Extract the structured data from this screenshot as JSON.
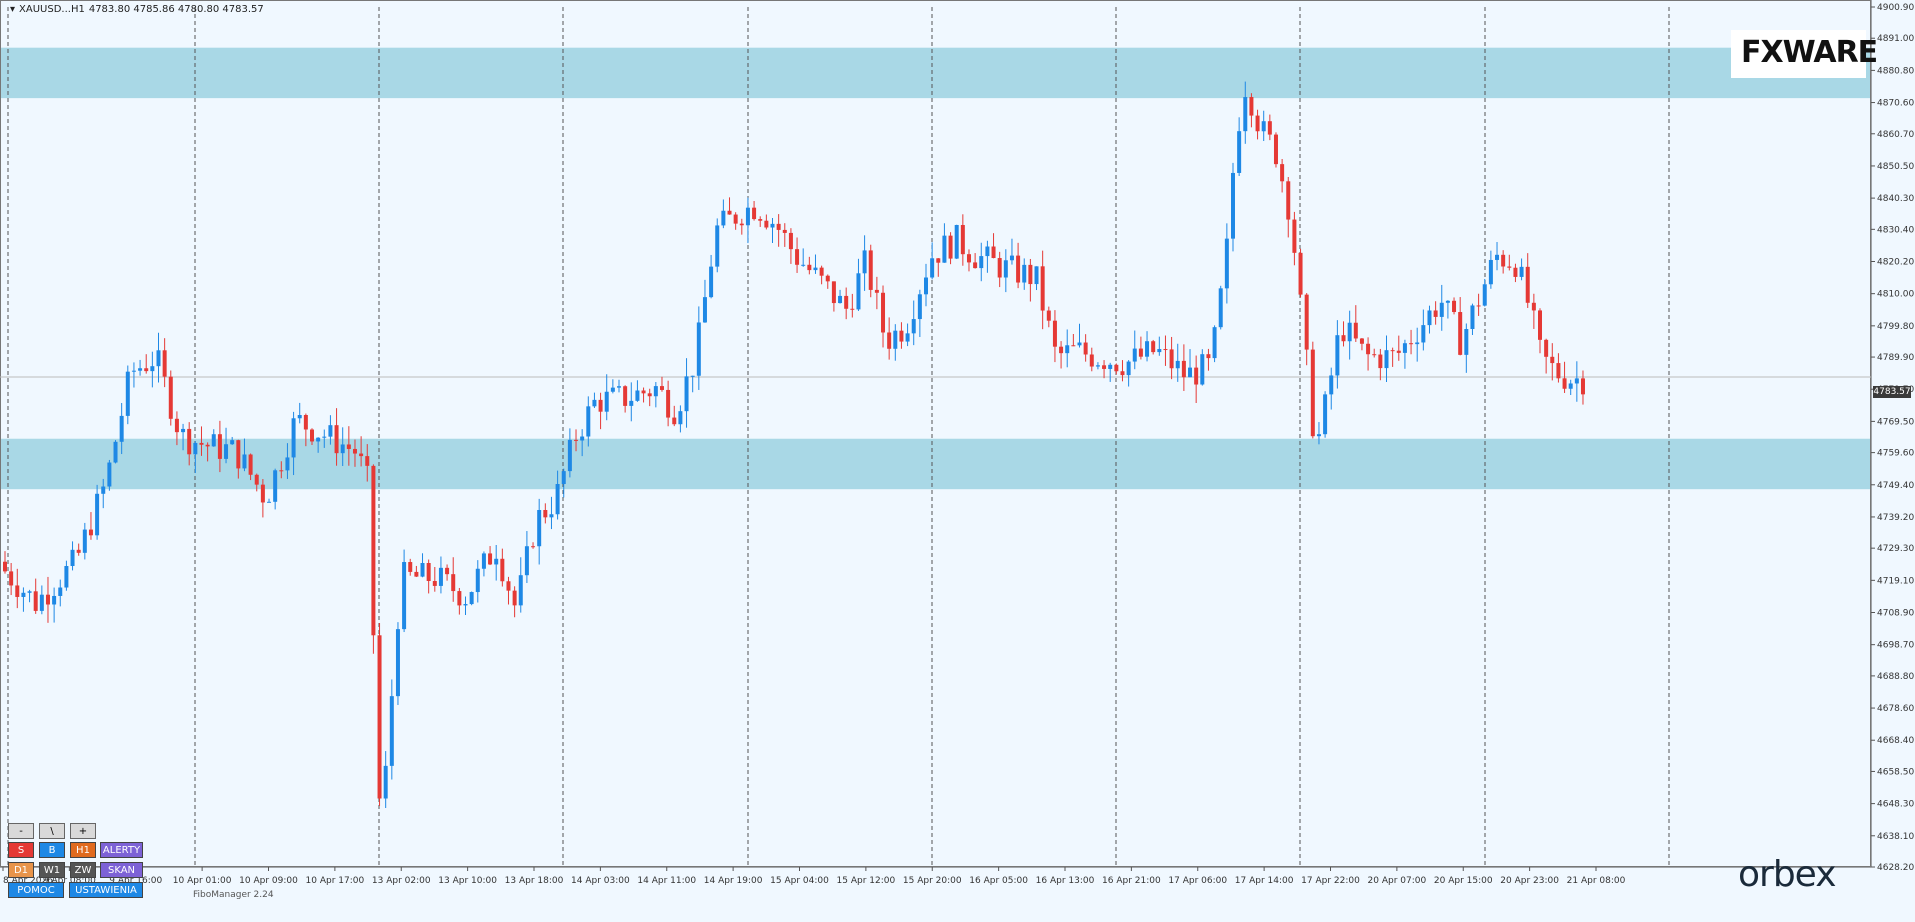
{
  "header": {
    "symbol": "XAUUSD...H1",
    "ohlc": "4783.80 4785.86 4780.80 4783.57"
  },
  "current_price": "4783.57",
  "fibo_label": "FiboManager 2.24",
  "brand": {
    "fxware": "FXWARE",
    "orbex": "orbex"
  },
  "toolbar": {
    "row1": [
      "-",
      "\\",
      "+"
    ],
    "row2": [
      "S",
      "B",
      "H1",
      "ALERTY"
    ],
    "row3": [
      "D1",
      "W1",
      "ZW",
      "SKAN"
    ],
    "row4": [
      "POMOC",
      "USTAWIENIA"
    ]
  },
  "colors": {
    "bull": "#1e88e5",
    "bear": "#e53935",
    "zone": "#a9d8e6",
    "background": "#f0f8ff"
  },
  "chart_data": {
    "type": "candlestick",
    "ylim": [
      4628.2,
      4900.9
    ],
    "y_ticks": [
      "4900.90",
      "4891.00",
      "4880.80",
      "4870.60",
      "4860.70",
      "4850.50",
      "4840.30",
      "4830.40",
      "4820.20",
      "4810.00",
      "4799.80",
      "4789.90",
      "4779.70",
      "4769.50",
      "4759.60",
      "4749.40",
      "4739.20",
      "4729.30",
      "4719.10",
      "4708.90",
      "4698.70",
      "4688.80",
      "4678.60",
      "4668.40",
      "4658.50",
      "4648.30",
      "4638.10",
      "4628.20"
    ],
    "x_ticks": [
      "8 Apr 2026",
      "9 Apr 08:00",
      "9 Apr 16:00",
      "10 Apr 01:00",
      "10 Apr 09:00",
      "10 Apr 17:00",
      "13 Apr 02:00",
      "13 Apr 10:00",
      "13 Apr 18:00",
      "14 Apr 03:00",
      "14 Apr 11:00",
      "14 Apr 19:00",
      "15 Apr 04:00",
      "15 Apr 12:00",
      "15 Apr 20:00",
      "16 Apr 05:00",
      "16 Apr 13:00",
      "16 Apr 21:00",
      "17 Apr 06:00",
      "17 Apr 14:00",
      "17 Apr 22:00",
      "20 Apr 07:00",
      "20 Apr 15:00",
      "20 Apr 23:00",
      "21 Apr 08:00"
    ],
    "zones": [
      [
        4872.0,
        4888.0
      ],
      [
        4748.0,
        4764.0
      ]
    ],
    "current_price": 4783.57
  }
}
